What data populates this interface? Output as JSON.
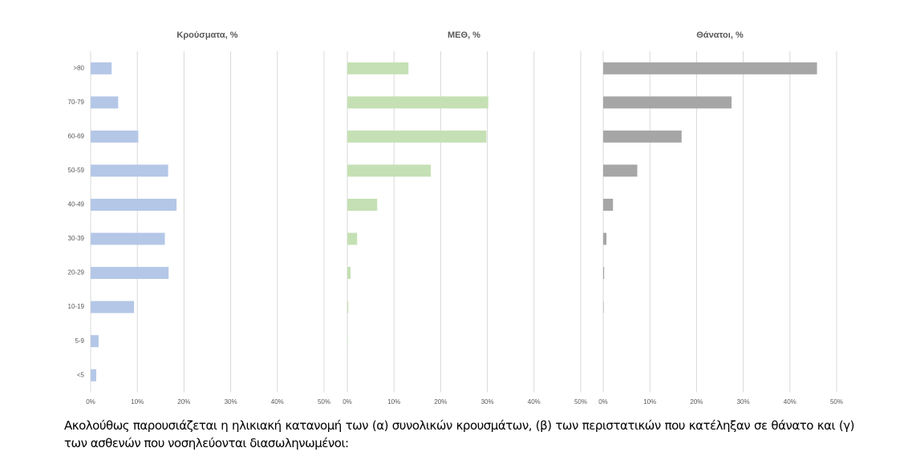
{
  "chart_data": [
    {
      "type": "barh",
      "title": "Κρούσματα, %",
      "color": "#b4c7e7",
      "categories": [
        ">80",
        "70-79",
        "60-69",
        "50-59",
        "40-49",
        "30-39",
        "20-29",
        "10-19",
        "5-9",
        "<5"
      ],
      "values": [
        4.5,
        5.9,
        10.2,
        16.6,
        18.4,
        15.9,
        16.7,
        9.3,
        1.7,
        1.2
      ],
      "xlim": [
        0,
        50
      ],
      "xticks": [
        {
          "value": 0,
          "label": "0%"
        },
        {
          "value": 10,
          "label": "10%"
        },
        {
          "value": 20,
          "label": "20%"
        },
        {
          "value": 30,
          "label": "30%"
        },
        {
          "value": 40,
          "label": "40%"
        },
        {
          "value": 50,
          "label": "50%"
        }
      ],
      "grid": true
    },
    {
      "type": "barh",
      "title": "ΜΕΘ, %",
      "color": "#c5e0b4",
      "values": [
        13.1,
        30.2,
        29.8,
        17.9,
        6.4,
        2.1,
        0.7,
        0.2,
        0.1,
        0
      ],
      "xlim": [
        0,
        50
      ],
      "xticks": [
        {
          "value": 0,
          "label": "0%"
        },
        {
          "value": 10,
          "label": "10%"
        },
        {
          "value": 20,
          "label": "20%"
        },
        {
          "value": 30,
          "label": "30%"
        },
        {
          "value": 40,
          "label": "40%"
        },
        {
          "value": 50,
          "label": "50%"
        }
      ],
      "grid": true
    },
    {
      "type": "barh",
      "title": "Θάνατοι, %",
      "color": "#a6a6a6",
      "values": [
        45.8,
        27.5,
        16.8,
        7.3,
        2.1,
        0.7,
        0.2,
        0.1,
        0,
        0
      ],
      "xlim": [
        0,
        50
      ],
      "xticks": [
        {
          "value": 0,
          "label": "0%"
        },
        {
          "value": 10,
          "label": "10%"
        },
        {
          "value": 20,
          "label": "20%"
        },
        {
          "value": 30,
          "label": "30%"
        },
        {
          "value": 40,
          "label": "40%"
        },
        {
          "value": 50,
          "label": "50%"
        }
      ],
      "grid": true
    }
  ],
  "paragraph": "Ακολούθως παρουσιάζεται η ηλικιακή κατανομή των (α) συνολικών κρουσμάτων, (β) των περιστατικών που κατέληξαν σε θάνατο και (γ) των ασθενών που νοσηλεύονται διασωληνωμένοι:"
}
